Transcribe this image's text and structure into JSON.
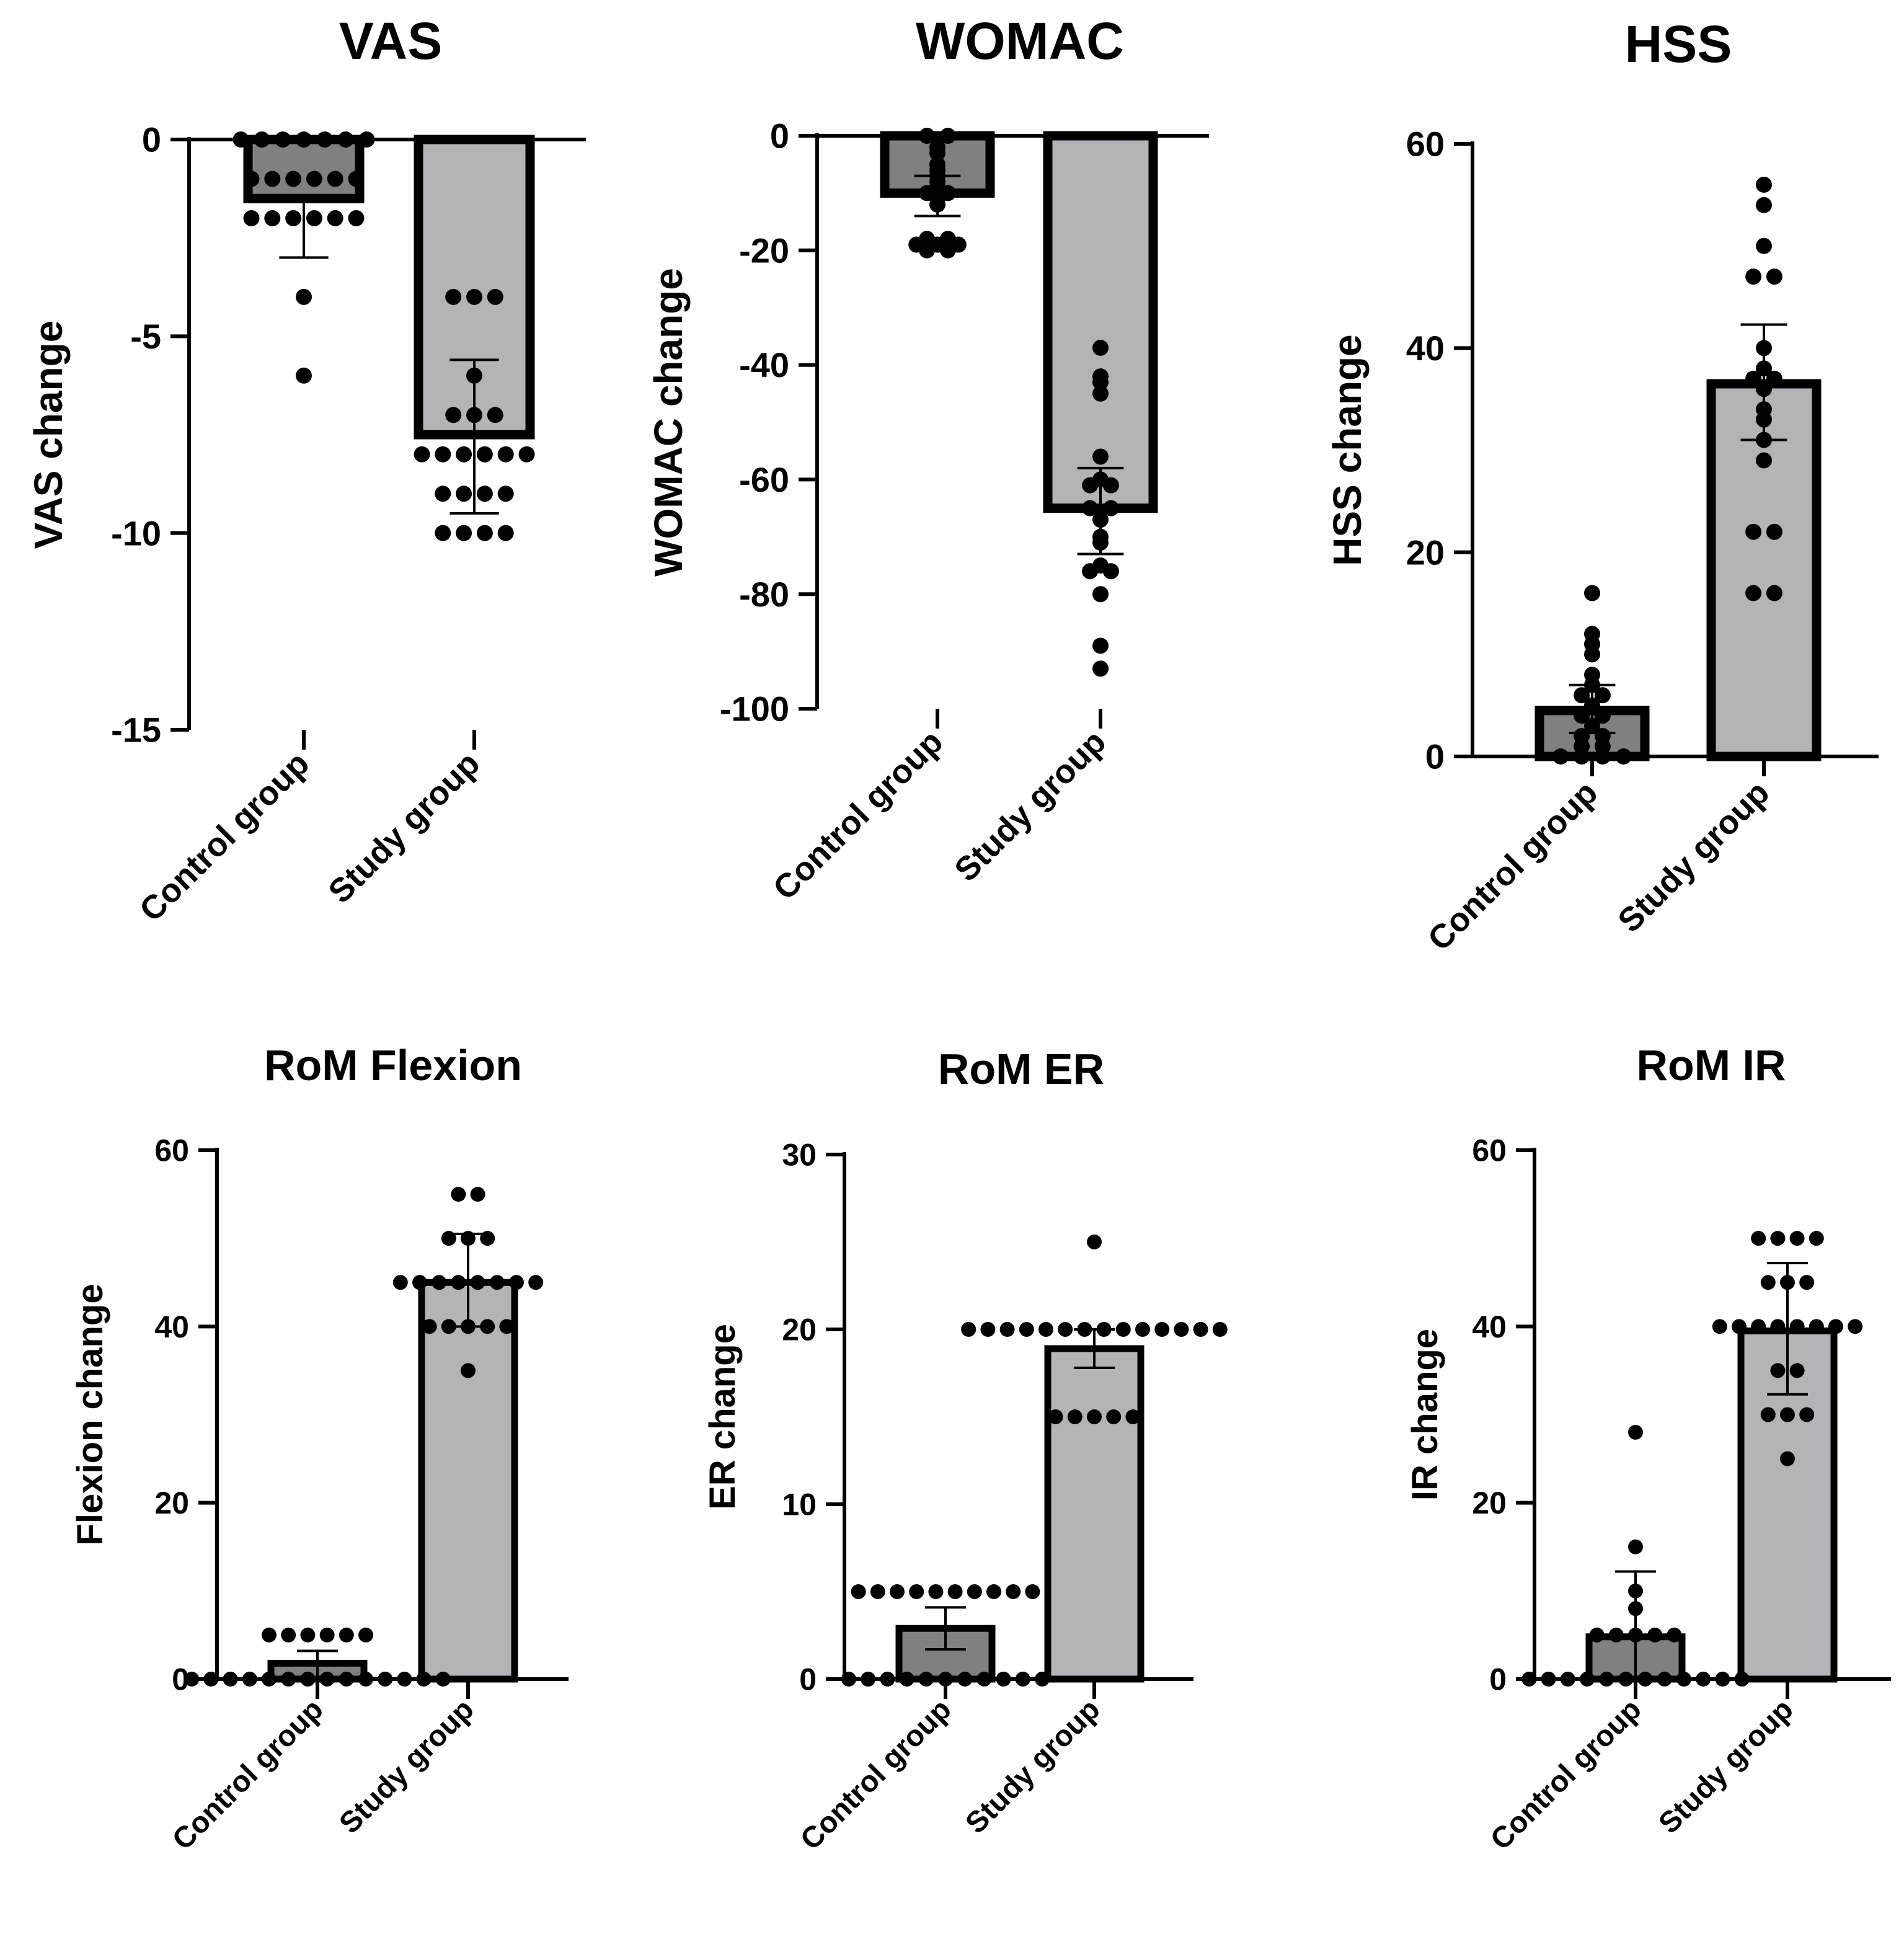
{
  "colors": {
    "control_bar": "#808080",
    "study_bar": "#b4b4b8",
    "stroke": "#000000",
    "dot": "#000000",
    "background": "#ffffff"
  },
  "chart_data": [
    {
      "id": "vas",
      "type": "bar",
      "title": "VAS",
      "ylabel": "VAS change",
      "xlabel": "",
      "categories": [
        "Control group",
        "Study group"
      ],
      "ylim": [
        -15,
        0
      ],
      "yticks": [
        0,
        -5,
        -10,
        -15
      ],
      "means": [
        -1.5,
        -7.5
      ],
      "error_low": [
        -3.0,
        -9.5
      ],
      "error_high": [
        -1.5,
        -5.6
      ],
      "points": [
        [
          0,
          0,
          0,
          0,
          0,
          0,
          0,
          -1,
          -1,
          -1,
          -1,
          -1,
          -1,
          -2,
          -2,
          -2,
          -2,
          -2,
          -2,
          -4,
          -6
        ],
        [
          -4,
          -4,
          -4,
          -6,
          -7,
          -7,
          -7,
          -8,
          -8,
          -8,
          -8,
          -8,
          -8,
          -9,
          -9,
          -9,
          -9,
          -10,
          -10,
          -10,
          -10
        ]
      ]
    },
    {
      "id": "womac",
      "type": "bar",
      "title": "WOMAC",
      "ylabel": "WOMAC change",
      "xlabel": "",
      "categories": [
        "Control group",
        "Study group"
      ],
      "ylim": [
        -100,
        0
      ],
      "yticks": [
        0,
        -20,
        -40,
        -60,
        -80,
        -100
      ],
      "means": [
        -10,
        -65
      ],
      "error_low": [
        -14,
        -73
      ],
      "error_high": [
        -7,
        -58
      ],
      "points": [
        [
          0,
          0,
          -2,
          -3,
          -5,
          -6,
          -7,
          -8,
          -9,
          -10,
          -10,
          -11,
          -12,
          -18,
          -18,
          -19,
          -19,
          -19,
          -20,
          -20
        ],
        [
          -37,
          -42,
          -43,
          -45,
          -56,
          -60,
          -61,
          -61,
          -65,
          -65,
          -67,
          -70,
          -71,
          -75,
          -76,
          -76,
          -80,
          -89,
          -93
        ]
      ]
    },
    {
      "id": "hss",
      "type": "bar",
      "title": "HSS",
      "ylabel": "HSS change",
      "xlabel": "",
      "categories": [
        "Control group",
        "Study group"
      ],
      "ylim": [
        0,
        60
      ],
      "yticks": [
        0,
        20,
        40,
        60
      ],
      "means": [
        4.5,
        36.5
      ],
      "error_low": [
        2.3,
        31
      ],
      "error_high": [
        7,
        42.3
      ],
      "points": [
        [
          0,
          0,
          0,
          0,
          1,
          1,
          2,
          2,
          3,
          4,
          4,
          5,
          6,
          6,
          7,
          8,
          10,
          11,
          12,
          16
        ],
        [
          16,
          16,
          22,
          22,
          29,
          31,
          33,
          34,
          36,
          37,
          37,
          38,
          40,
          47,
          47,
          50,
          54,
          56
        ]
      ]
    },
    {
      "id": "rom-flexion",
      "type": "bar",
      "title": "RoM Flexion",
      "ylabel": "Flexion change",
      "xlabel": "",
      "categories": [
        "Control group",
        "Study group"
      ],
      "ylim": [
        0,
        60
      ],
      "yticks": [
        0,
        20,
        40,
        60
      ],
      "means": [
        1.8,
        45
      ],
      "error_low": [
        0,
        40
      ],
      "error_high": [
        3.2,
        50.5
      ],
      "points": [
        [
          0,
          0,
          0,
          0,
          0,
          0,
          0,
          0,
          0,
          0,
          0,
          0,
          0,
          0,
          5,
          5,
          5,
          5,
          5,
          5
        ],
        [
          35,
          40,
          40,
          40,
          40,
          40,
          45,
          45,
          45,
          45,
          45,
          45,
          45,
          45,
          50,
          50,
          50,
          55,
          55
        ]
      ]
    },
    {
      "id": "rom-er",
      "type": "bar",
      "title": "RoM ER",
      "ylabel": "ER change",
      "xlabel": "",
      "categories": [
        "Control group",
        "Study group"
      ],
      "ylim": [
        0,
        30
      ],
      "yticks": [
        0,
        10,
        20,
        30
      ],
      "means": [
        2.9,
        18.9
      ],
      "error_low": [
        1.7,
        17.8
      ],
      "error_high": [
        4.1,
        20.0
      ],
      "points": [
        [
          0,
          0,
          0,
          0,
          0,
          0,
          0,
          0,
          0,
          0,
          0,
          5,
          5,
          5,
          5,
          5,
          5,
          5,
          5,
          5,
          5
        ],
        [
          15,
          15,
          15,
          15,
          15,
          20,
          20,
          20,
          20,
          20,
          20,
          20,
          20,
          20,
          20,
          20,
          20,
          20,
          20,
          25
        ]
      ]
    },
    {
      "id": "rom-ir",
      "type": "bar",
      "title": "RoM IR",
      "ylabel": "IR change",
      "xlabel": "",
      "categories": [
        "Control group",
        "Study group"
      ],
      "ylim": [
        0,
        60
      ],
      "yticks": [
        0,
        20,
        40,
        60
      ],
      "means": [
        4.8,
        39.5
      ],
      "error_low": [
        0,
        32.3
      ],
      "error_high": [
        12.2,
        47.2
      ],
      "points": [
        [
          0,
          0,
          0,
          0,
          0,
          0,
          0,
          0,
          0,
          0,
          0,
          0,
          5,
          5,
          5,
          5,
          5,
          8,
          10,
          15,
          28
        ],
        [
          25,
          30,
          30,
          30,
          35,
          35,
          40,
          40,
          40,
          40,
          40,
          40,
          40,
          40,
          45,
          45,
          45,
          50,
          50,
          50,
          50
        ]
      ]
    }
  ]
}
